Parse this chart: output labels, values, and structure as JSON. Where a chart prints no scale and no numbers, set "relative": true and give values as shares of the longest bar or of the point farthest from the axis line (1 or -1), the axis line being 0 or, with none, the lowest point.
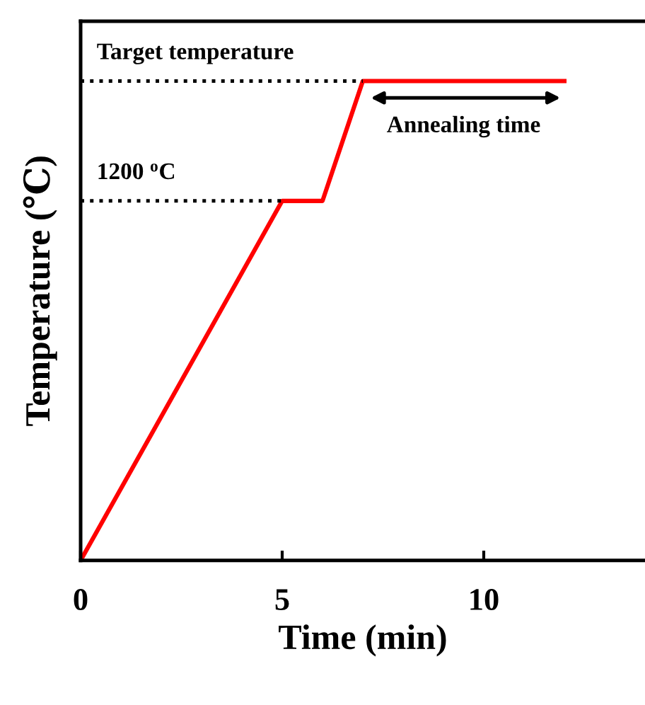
{
  "chart_data": {
    "type": "line",
    "relative": true,
    "xlabel": "Time (min)",
    "ylabel": "Temperature (℃)",
    "x": [
      0,
      5,
      6,
      7,
      12
    ],
    "series": [
      {
        "color": "#ff0000",
        "values": [
          0,
          0.75,
          0.75,
          1,
          1
        ]
      }
    ],
    "xlim": [
      0,
      14
    ],
    "xticks": [
      0,
      5,
      10
    ],
    "tick_labels": "x",
    "grid": false,
    "legend": false,
    "marker": "none",
    "line_style": "solid",
    "ref_lines": [
      {
        "axis": "y",
        "value": 0.75,
        "label": "1200 $^{o}$C",
        "line_style": "dotted",
        "color": "#000000"
      },
      {
        "axis": "y",
        "value": 1,
        "label": "Target temperature",
        "line_style": "dotted",
        "color": "#000000"
      }
    ],
    "annotations": [
      "Annealing time"
    ]
  }
}
